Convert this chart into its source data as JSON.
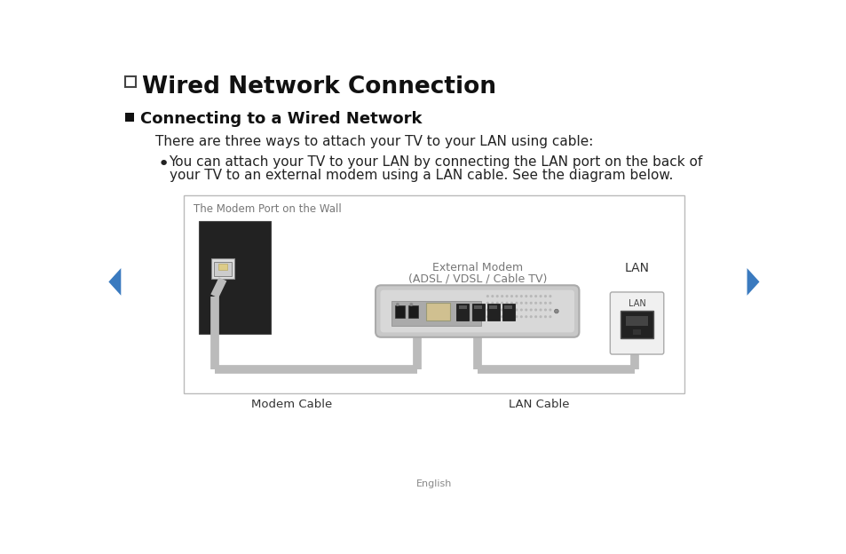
{
  "bg_color": "#ffffff",
  "title_text": "Wired Network Connection",
  "section_title": "Connecting to a Wired Network",
  "body_text": "There are three ways to attach your TV to your LAN using cable:",
  "bullet_line1": "You can attach your TV to your LAN by connecting the LAN port on the back of",
  "bullet_line2": "your TV to an external modem using a LAN cable. See the diagram below.",
  "diagram_label_wall": "The Modem Port on the Wall",
  "diagram_label_modem_line1": "External Modem",
  "diagram_label_modem_line2": "(ADSL / VDSL / Cable TV)",
  "diagram_label_lan": "LAN",
  "diagram_label_lan_small": "LAN",
  "diagram_label_modem_cable": "Modem Cable",
  "diagram_label_lan_cable": "LAN Cable",
  "nav_color": "#3a7abf",
  "footer_text": "English",
  "wall_panel_color": "#222222",
  "modem_body_color": "#c8c8c8",
  "modem_gradient_top": "#e0e0e0",
  "modem_edge_color": "#aaaaaa",
  "lan_panel_color": "#f2f2f2",
  "cable_color": "#bbbbbb",
  "text_color": "#333333",
  "label_color": "#777777"
}
